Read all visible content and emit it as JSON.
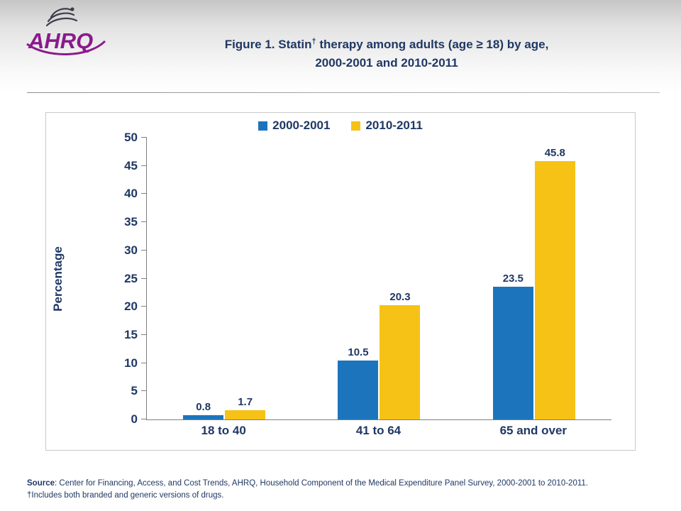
{
  "page": {
    "title_pre": "Figure 1. Statin",
    "title_sup": "†",
    "title_post": " therapy among adults (age ≥ 18) by age,",
    "title_line2": "2000-2001 and 2010-2011"
  },
  "logo": {
    "text": "AHRQ"
  },
  "colors": {
    "heading_text": "#1F3864",
    "logo_purple": "#8A1A8C"
  },
  "chart_data": {
    "type": "bar",
    "categories": [
      "18 to 40",
      "41 to 64",
      "65 and over"
    ],
    "series": [
      {
        "name": "2000-2001",
        "color": "#1C75BC",
        "values": [
          0.8,
          10.5,
          23.5
        ]
      },
      {
        "name": "2010-2011",
        "color": "#F6C215",
        "values": [
          1.7,
          20.3,
          45.8
        ]
      }
    ],
    "title": "Figure 1. Statin† therapy among adults (age ≥ 18) by age, 2000-2001 and 2010-2011",
    "xlabel": "",
    "ylabel": "Percentage",
    "ylim": [
      0,
      50
    ],
    "ytick_step": 5,
    "legend_position": "top",
    "grid": false
  },
  "footer": {
    "source_label": "Source",
    "source_rest": ": Center for Financing, Access, and Cost Trends, AHRQ, Household Component of the Medical Expenditure Panel Survey, 2000-2001 to 2010-2011.",
    "footnote": "†Includes both branded and generic versions of drugs."
  }
}
